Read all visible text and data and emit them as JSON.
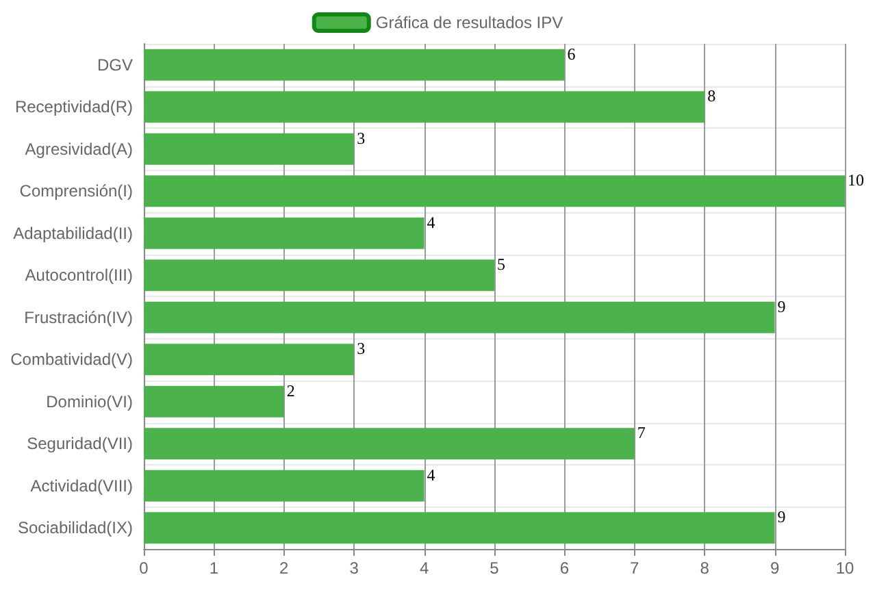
{
  "chart_data": {
    "type": "bar",
    "orientation": "horizontal",
    "categories": [
      "DGV",
      "Receptividad(R)",
      "Agresividad(A)",
      "Comprensión(I)",
      "Adaptabilidad(II)",
      "Autocontrol(III)",
      "Frustración(IV)",
      "Combatividad(V)",
      "Dominio(VI)",
      "Seguridad(VII)",
      "Actividad(VIII)",
      "Sociabilidad(IX)"
    ],
    "series": [
      {
        "name": "Gráfica de resultados IPV",
        "color": "#4cb34c",
        "values": [
          6,
          8,
          3,
          10,
          4,
          5,
          9,
          3,
          2,
          7,
          4,
          9
        ]
      }
    ],
    "xlim": [
      0,
      10
    ],
    "xticks": [
      0,
      1,
      2,
      3,
      4,
      5,
      6,
      7,
      8,
      9,
      10
    ],
    "grid": true,
    "legend": "top",
    "data_labels": true
  }
}
